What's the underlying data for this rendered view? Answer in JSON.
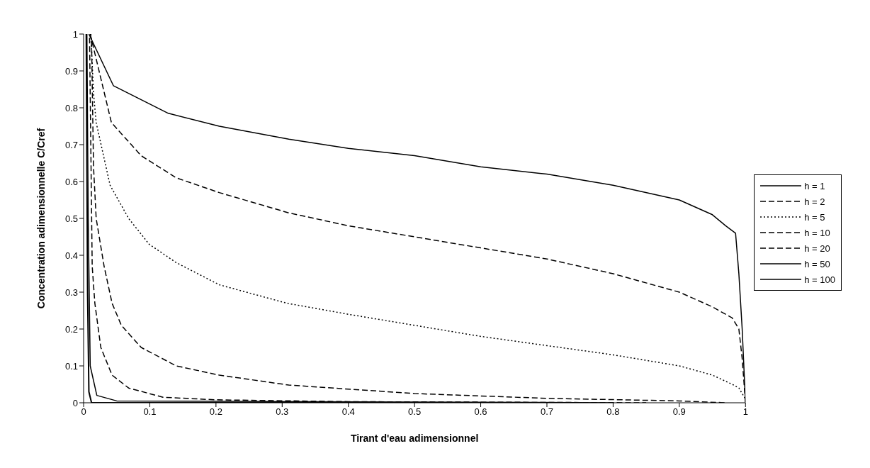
{
  "chart_data": {
    "type": "line",
    "xlabel": "Tirant d'eau adimensionnel",
    "ylabel": "Concentration adimensionnelle C/Cref",
    "xlim": [
      0,
      1
    ],
    "ylim": [
      0,
      1
    ],
    "xticks": [
      0,
      0.1,
      0.2,
      0.3,
      0.4,
      0.5,
      0.6,
      0.7,
      0.8,
      0.9,
      1
    ],
    "yticks": [
      0,
      0.1,
      0.2,
      0.3,
      0.4,
      0.5,
      0.6,
      0.7,
      0.8,
      0.9,
      1
    ],
    "grid": false,
    "legend": "right",
    "marker": "none",
    "series": [
      {
        "name": "h = 1",
        "color": "#000000",
        "line_style": "solid",
        "x": [
          0.008,
          0.045,
          0.128,
          0.205,
          0.31,
          0.4,
          0.5,
          0.6,
          0.7,
          0.8,
          0.9,
          0.95,
          0.97,
          0.985,
          0.99,
          0.995,
          1
        ],
        "values": [
          1,
          0.86,
          0.785,
          0.75,
          0.715,
          0.69,
          0.67,
          0.64,
          0.62,
          0.59,
          0.55,
          0.51,
          0.48,
          0.46,
          0.35,
          0.2,
          0
        ]
      },
      {
        "name": "h = 2",
        "color": "#000000",
        "line_style": "dashed",
        "x": [
          0.01,
          0.042,
          0.087,
          0.14,
          0.205,
          0.31,
          0.4,
          0.5,
          0.6,
          0.7,
          0.8,
          0.9,
          0.95,
          0.98,
          0.99,
          0.995,
          1
        ],
        "values": [
          1,
          0.76,
          0.67,
          0.61,
          0.57,
          0.515,
          0.48,
          0.45,
          0.42,
          0.39,
          0.35,
          0.3,
          0.26,
          0.23,
          0.2,
          0.12,
          0
        ]
      },
      {
        "name": "h = 5",
        "color": "#000000",
        "line_style": "dotted",
        "x": [
          0.011,
          0.015,
          0.019,
          0.04,
          0.068,
          0.099,
          0.14,
          0.205,
          0.307,
          0.4,
          0.5,
          0.6,
          0.7,
          0.8,
          0.9,
          0.95,
          0.98,
          0.99,
          1
        ],
        "values": [
          1,
          0.84,
          0.76,
          0.59,
          0.5,
          0.43,
          0.38,
          0.32,
          0.27,
          0.24,
          0.21,
          0.18,
          0.155,
          0.13,
          0.1,
          0.075,
          0.05,
          0.04,
          0.01
        ]
      },
      {
        "name": "h = 10",
        "color": "#000000",
        "line_style": "dashed",
        "x": [
          0.012,
          0.015,
          0.019,
          0.031,
          0.043,
          0.057,
          0.087,
          0.14,
          0.205,
          0.31,
          0.5,
          0.7,
          0.9,
          0.97
        ],
        "values": [
          0.98,
          0.64,
          0.5,
          0.37,
          0.27,
          0.21,
          0.15,
          0.1,
          0.075,
          0.048,
          0.025,
          0.012,
          0.005,
          0
        ]
      },
      {
        "name": "h = 20",
        "color": "#000000",
        "line_style": "dashed",
        "x": [
          0.009,
          0.013,
          0.017,
          0.026,
          0.043,
          0.068,
          0.12,
          0.2,
          0.4,
          0.85
        ],
        "values": [
          0.99,
          0.37,
          0.27,
          0.15,
          0.075,
          0.04,
          0.015,
          0.008,
          0.003,
          0
        ]
      },
      {
        "name": "h = 50",
        "color": "#000000",
        "line_style": "solid",
        "x": [
          0.005,
          0.007,
          0.01,
          0.02,
          0.05,
          0.8
        ],
        "values": [
          1,
          0.5,
          0.1,
          0.02,
          0.005,
          0
        ]
      },
      {
        "name": "h = 100",
        "color": "#000000",
        "line_style": "solid",
        "x": [
          0.004,
          0.006,
          0.008,
          0.012,
          0.7
        ],
        "values": [
          1,
          0.3,
          0.03,
          0,
          0
        ]
      }
    ]
  }
}
